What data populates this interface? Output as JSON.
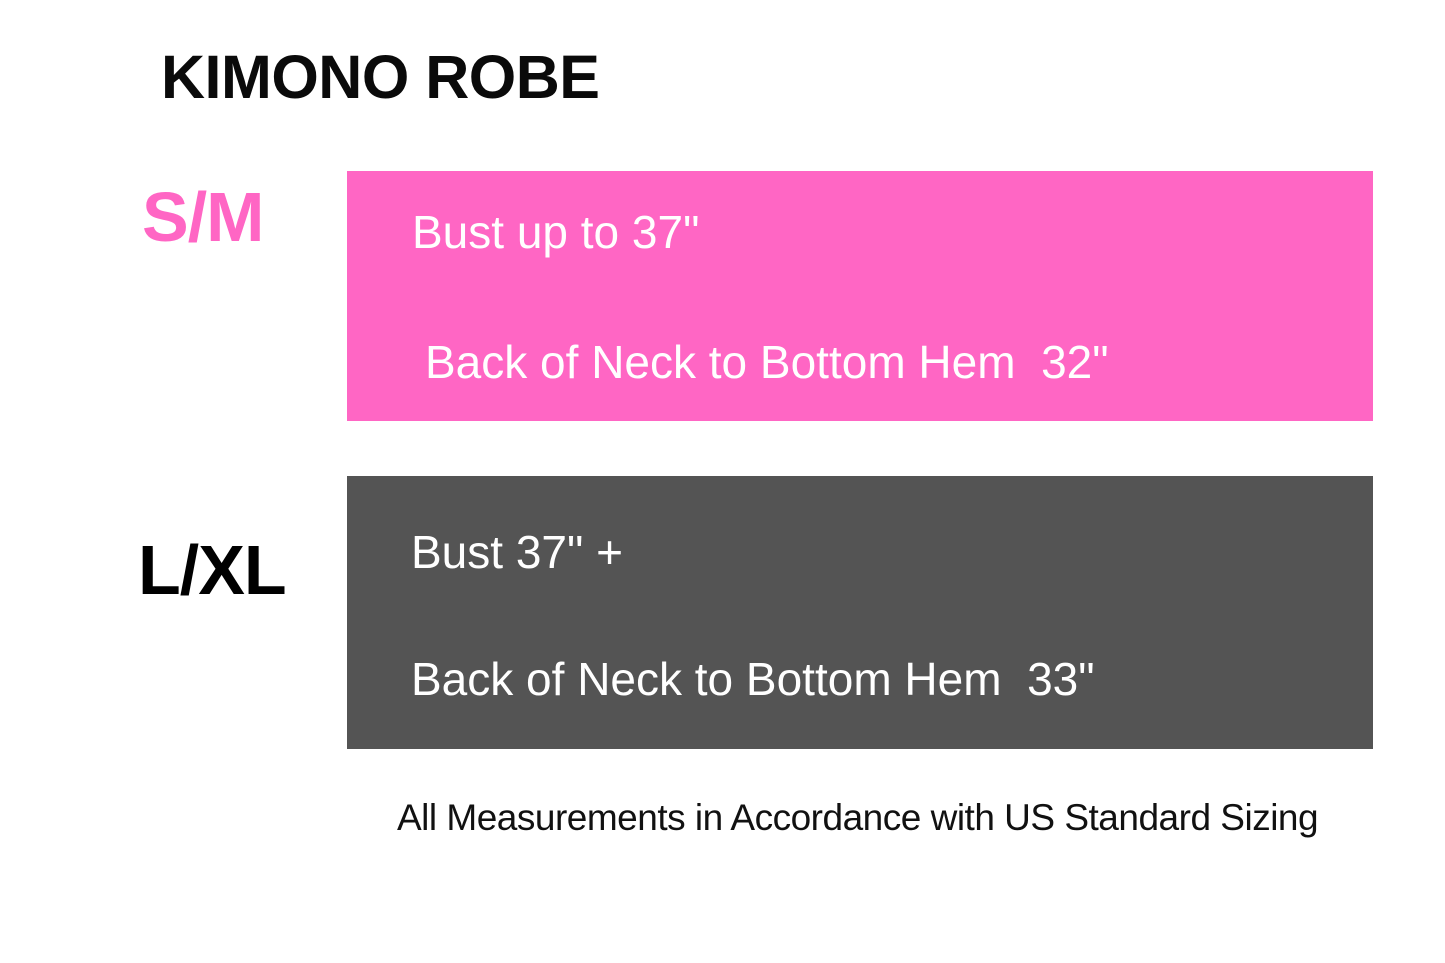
{
  "page": {
    "title": "KIMONO ROBE",
    "footnote": "All Measurements in Accordance with US Standard Sizing"
  },
  "sizes": [
    {
      "label": "S/M",
      "bust": "Bust up to 37\"",
      "length": "Back of Neck to Bottom Hem  32\"",
      "box_color": "#ff66c4",
      "label_color": "#ff66c4",
      "text_color": "#ffffff"
    },
    {
      "label": "L/XL",
      "bust": "Bust 37\" +",
      "length": "Back of Neck to Bottom Hem  33\"",
      "box_color": "#545454",
      "label_color": "#000000",
      "text_color": "#ffffff"
    }
  ],
  "colors": {
    "accent_pink": "#ff66c4",
    "accent_gray": "#545454",
    "background": "#ffffff",
    "text_black": "#0a0a0a"
  }
}
